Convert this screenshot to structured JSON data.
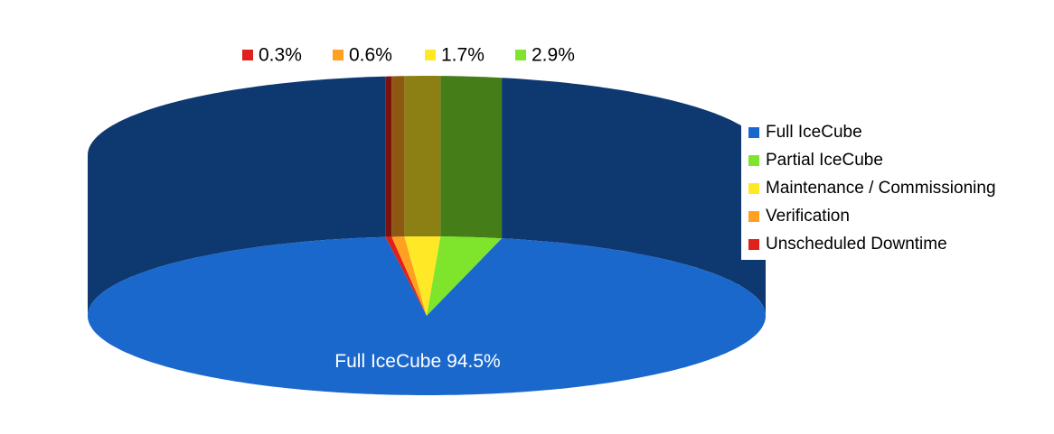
{
  "chart_data": {
    "type": "pie",
    "categories": [
      "Full IceCube",
      "Partial IceCube",
      "Maintenance / Commissioning",
      "Verification",
      "Unscheduled Downtime"
    ],
    "values": [
      94.5,
      2.9,
      1.7,
      0.6,
      0.3
    ],
    "value_labels": [
      "94.5%",
      "2.9%",
      "1.7%",
      "0.6%",
      "0.3%"
    ],
    "colors": [
      "#1a68cc",
      "#7ee42c",
      "#ffe826",
      "#ffa020",
      "#e0201a"
    ],
    "legend": "right"
  }
}
